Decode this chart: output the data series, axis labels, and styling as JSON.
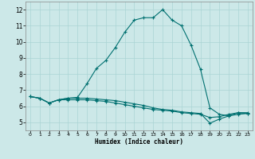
{
  "xlabel": "Humidex (Indice chaleur)",
  "bg_color": "#cce8e8",
  "grid_color": "#aad4d4",
  "line_color": "#007070",
  "xlim": [
    -0.5,
    23.5
  ],
  "ylim": [
    4.5,
    12.5
  ],
  "xticks": [
    0,
    1,
    2,
    3,
    4,
    5,
    6,
    7,
    8,
    9,
    10,
    11,
    12,
    13,
    14,
    15,
    16,
    17,
    18,
    19,
    20,
    21,
    22,
    23
  ],
  "yticks": [
    5,
    6,
    7,
    8,
    9,
    10,
    11,
    12
  ],
  "line1_x": [
    0,
    1,
    2,
    3,
    4,
    5,
    6,
    7,
    8,
    9,
    10,
    11,
    12,
    13,
    14,
    15,
    16,
    17,
    18,
    19,
    20,
    21,
    22,
    23
  ],
  "line1_y": [
    6.6,
    6.5,
    6.2,
    6.4,
    6.4,
    6.4,
    6.4,
    6.35,
    6.3,
    6.2,
    6.1,
    6.0,
    5.9,
    5.8,
    5.75,
    5.7,
    5.6,
    5.55,
    5.5,
    5.3,
    5.35,
    5.5,
    5.6,
    5.6
  ],
  "line2_x": [
    0,
    1,
    2,
    3,
    4,
    5,
    6,
    7,
    8,
    9,
    10,
    11,
    12,
    13,
    14,
    15,
    16,
    17,
    18,
    19,
    20,
    21,
    22,
    23
  ],
  "line2_y": [
    6.6,
    6.5,
    6.2,
    6.4,
    6.5,
    6.5,
    6.5,
    6.45,
    6.4,
    6.35,
    6.25,
    6.15,
    6.05,
    5.9,
    5.8,
    5.75,
    5.65,
    5.6,
    5.55,
    4.95,
    5.2,
    5.4,
    5.5,
    5.55
  ],
  "line3_x": [
    0,
    1,
    2,
    3,
    4,
    5,
    6,
    7,
    8,
    9,
    10,
    11,
    12,
    13,
    14,
    15,
    16,
    17,
    18,
    19,
    20,
    21,
    22,
    23
  ],
  "line3_y": [
    6.6,
    6.5,
    6.2,
    6.4,
    6.5,
    6.55,
    7.4,
    8.35,
    8.85,
    9.65,
    10.6,
    11.35,
    11.5,
    11.5,
    12.0,
    11.35,
    11.0,
    9.8,
    8.3,
    5.9,
    5.5,
    5.4,
    5.6,
    5.55
  ]
}
